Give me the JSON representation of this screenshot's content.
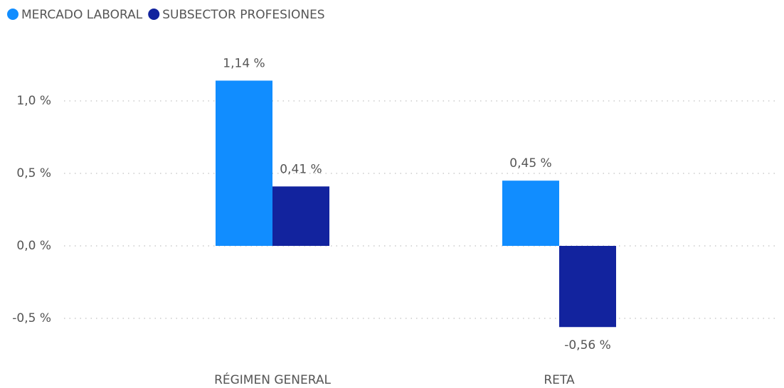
{
  "chart_data": {
    "type": "bar",
    "categories": [
      "RÉGIMEN GENERAL",
      "RETA"
    ],
    "series": [
      {
        "name": "MERCADO LABORAL",
        "color": "#118dff",
        "values": [
          1.14,
          0.45
        ],
        "value_labels": [
          "1,14 %",
          "0,45 %"
        ]
      },
      {
        "name": "SUBSECTOR PROFESIONES",
        "color": "#12239e",
        "values": [
          0.41,
          -0.56
        ],
        "value_labels": [
          "0,41 %",
          "-0,56 %"
        ]
      }
    ],
    "ylim": [
      -0.75,
      1.4
    ],
    "yticks": [
      {
        "value": -0.5,
        "label": "-0,5 %"
      },
      {
        "value": 0,
        "label": "0,0 %"
      },
      {
        "value": 0.5,
        "label": "0,5 %"
      },
      {
        "value": 1.0,
        "label": "1,0 %"
      }
    ],
    "grid": true,
    "legend": "top-left"
  }
}
